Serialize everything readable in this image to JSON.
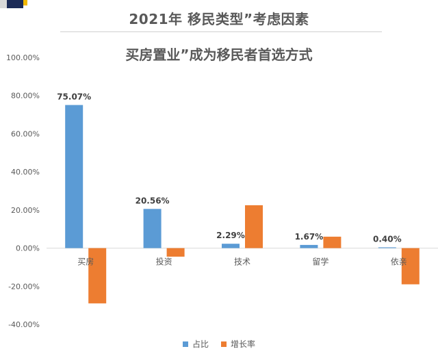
{
  "header": {
    "title": "2021年 移民类型”考虑因素",
    "subtitle": "买房置业”成为移民者首选方式"
  },
  "colors": {
    "share": "#5b9bd5",
    "growth": "#ed7d31"
  },
  "chart_data": {
    "type": "bar",
    "categories": [
      "买房",
      "投资",
      "技术",
      "留学",
      "依亲"
    ],
    "series": [
      {
        "name": "占比",
        "values": [
          75.07,
          20.56,
          2.29,
          1.67,
          0.4
        ],
        "labels": [
          "75.07%",
          "20.56%",
          "2.29%",
          "1.67%",
          "0.40%"
        ]
      },
      {
        "name": "增长率",
        "values": [
          -29,
          -4.5,
          22.5,
          6,
          -19
        ]
      }
    ],
    "ylim": [
      -40,
      100
    ],
    "yticks": [
      -40,
      -20,
      0,
      20,
      40,
      60,
      80,
      100
    ],
    "ytick_labels": [
      "-40.00%",
      "-20.00%",
      "0.00%",
      "20.00%",
      "40.00%",
      "60.00%",
      "80.00%",
      "100.00%"
    ],
    "grid": false,
    "legend": "bottom"
  }
}
